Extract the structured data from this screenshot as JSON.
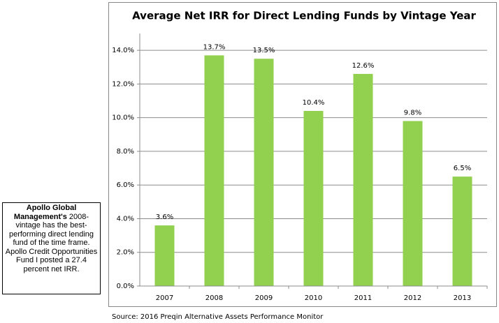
{
  "chart_data": {
    "type": "bar",
    "title": "Average Net IRR for Direct Lending Funds by Vintage Year",
    "categories": [
      "2007",
      "2008",
      "2009",
      "2010",
      "2011",
      "2012",
      "2013"
    ],
    "values": [
      3.6,
      13.7,
      13.5,
      10.4,
      12.6,
      9.8,
      6.5
    ],
    "value_labels": [
      "3.6%",
      "13.7%",
      "13.5%",
      "10.4%",
      "12.6%",
      "9.8%",
      "6.5%"
    ],
    "color": "#92d050",
    "ylim": [
      0,
      15
    ],
    "yticks": [
      {
        "value": 0,
        "label": "0.0%"
      },
      {
        "value": 2,
        "label": "2.0%"
      },
      {
        "value": 4,
        "label": "4.0%"
      },
      {
        "value": 6,
        "label": "6.0%"
      },
      {
        "value": 8,
        "label": "8.0%"
      },
      {
        "value": 10,
        "label": "10.0%"
      },
      {
        "value": 12,
        "label": "12.0%"
      },
      {
        "value": 14,
        "label": "14.0%"
      }
    ],
    "grid": true,
    "source": "Source: 2016 Preqin Alternative Assets Performance Monitor"
  },
  "note": {
    "bold": "Apollo Global Management's",
    "text": " 2008-vintage has the best-performing direct lending fund of the time frame. Apollo Credit Opportunities Fund I posted a 27.4 percent net IRR."
  }
}
